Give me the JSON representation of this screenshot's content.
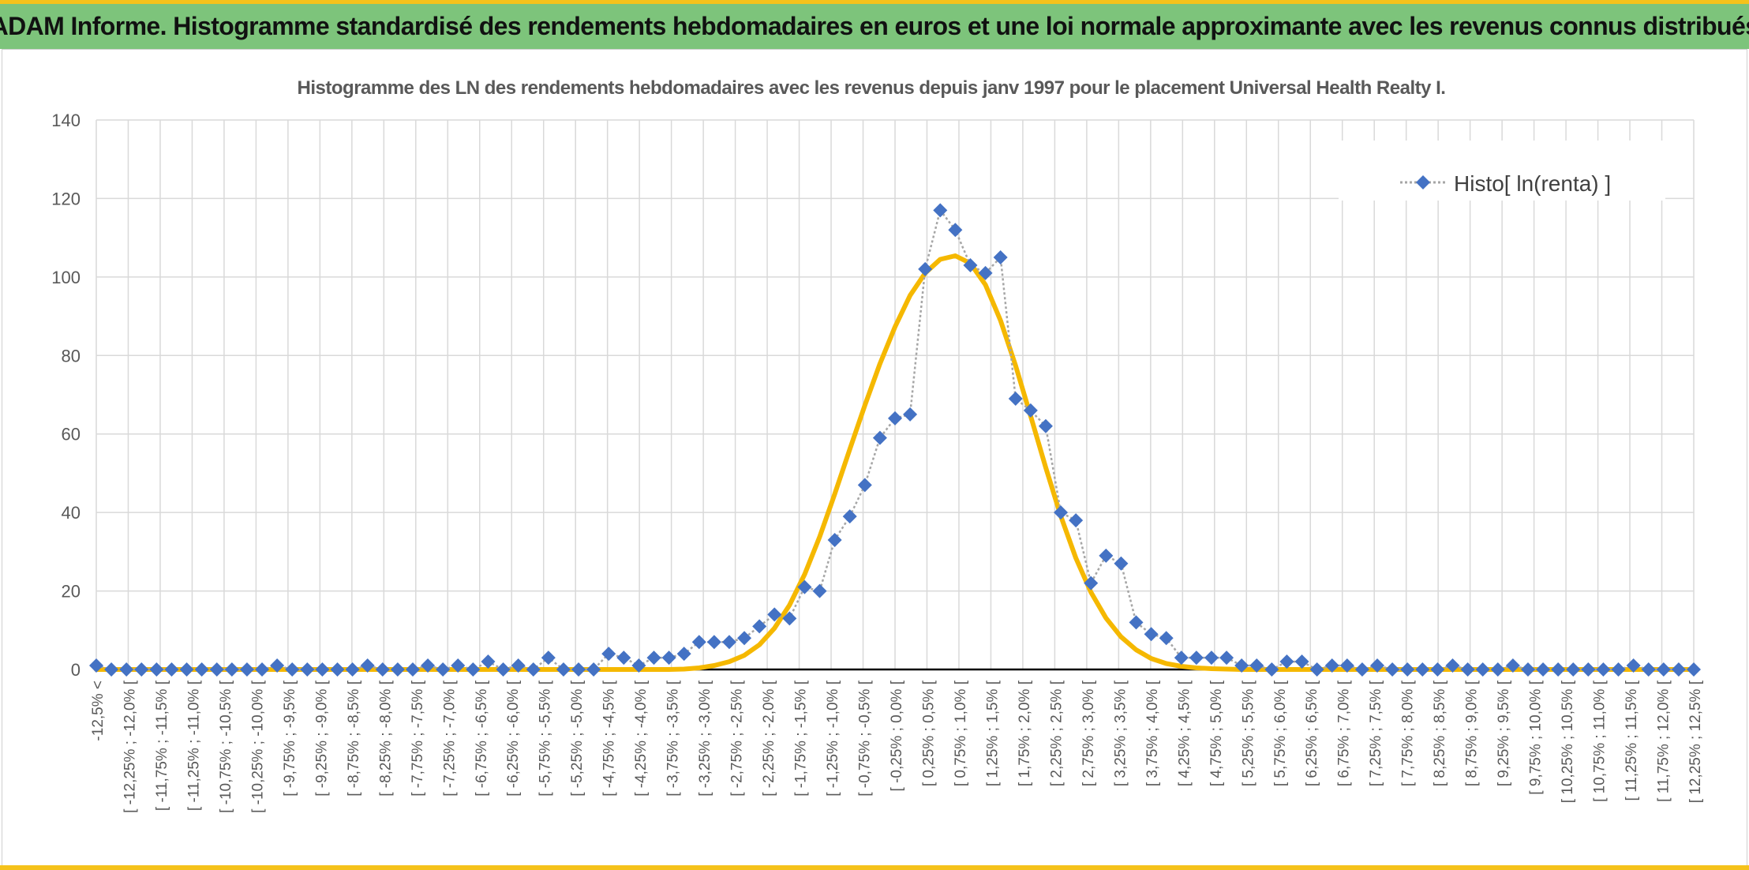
{
  "header": {
    "title": "ADAM Informe. Histogramme standardisé des rendements hebdomadaires en euros et une loi normale approximante avec les revenus connus distribués"
  },
  "colors": {
    "header_bg": "#7dc47b",
    "accent": "#f5c21b",
    "series_marker": "#4472c4",
    "series_line": "#a6a6a6",
    "normal_curve": "#f5b800"
  },
  "chart_data": {
    "type": "scatter",
    "title": "Histogramme des LN des rendements hebdomadaires avec les revenus depuis janv 1997 pour le placement Universal Health Realty I.",
    "xlabel": "",
    "ylabel": "",
    "ylim": [
      0,
      140
    ],
    "yticks": [
      "0",
      "20",
      "40",
      "60",
      "80",
      "100",
      "120",
      "140"
    ],
    "grid": true,
    "legend_position": "top-right",
    "categories": [
      "-12,5% <",
      "[ -12,25% ; -12,0% [",
      "[ -11,75% ; -11,5% [",
      "[ -11,25% ; -11,0% [",
      "[ -10,75% ; -10,5% [",
      "[ -10,25% ; -10,0% [",
      "[ -9,75% ; -9,5% [",
      "[ -9,25% ; -9,0% [",
      "[ -8,75% ; -8,5% [",
      "[ -8,25% ; -8,0% [",
      "[ -7,75% ; -7,5% [",
      "[ -7,25% ; -7,0% [",
      "[ -6,75% ; -6,5% [",
      "[ -6,25% ; -6,0% [",
      "[ -5,75% ; -5,5% [",
      "[ -5,25% ; -5,0% [",
      "[ -4,75% ; -4,5% [",
      "[ -4,25% ; -4,0% [",
      "[ -3,75% ; -3,5% [",
      "[ -3,25% ; -3,0% [",
      "[ -2,75% ; -2,5% [",
      "[ -2,25% ; -2,0% [",
      "[ -1,75% ; -1,5% [",
      "[ -1,25% ; -1,0% [",
      "[ -0,75% ; -0,5% [",
      "[ -0,25% ; 0,0% [",
      "[ 0,25% ; 0,5% [",
      "[ 0,75% ; 1,0% [",
      "[ 1,25% ; 1,5% [",
      "[ 1,75% ; 2,0% [",
      "[ 2,25% ; 2,5% [",
      "[ 2,75% ; 3,0% [",
      "[ 3,25% ; 3,5% [",
      "[ 3,75% ; 4,0% [",
      "[ 4,25% ; 4,5% [",
      "[ 4,75% ; 5,0% [",
      "[ 5,25% ; 5,5% [",
      "[ 5,75% ; 6,0% [",
      "[ 6,25% ; 6,5% [",
      "[ 6,75% ; 7,0% [",
      "[ 7,25% ; 7,5% [",
      "[ 7,75% ; 8,0% [",
      "[ 8,25% ; 8,5% [",
      "[ 8,75% ; 9,0% [",
      "[ 9,25% ; 9,5% [",
      "[ 9,75% ; 10,0% [",
      "[ 10,25% ; 10,5% [",
      "[ 10,75% ; 11,0% [",
      "[ 11,25% ; 11,5% [",
      "[ 11,75% ; 12,0% [",
      "[ 12,25% ; 12,5% ["
    ],
    "series": [
      {
        "name": "Histo[ ln(renta) ]",
        "style": "dotted line with diamond markers",
        "values": [
          1,
          0,
          0,
          0,
          0,
          0,
          0,
          0,
          0,
          0,
          0,
          0,
          1,
          0,
          0,
          0,
          0,
          0,
          1,
          0,
          0,
          0,
          1,
          0,
          1,
          0,
          2,
          0,
          1,
          0,
          3,
          0,
          0,
          0,
          4,
          3,
          1,
          3,
          3,
          4,
          7,
          7,
          7,
          8,
          11,
          14,
          13,
          21,
          20,
          33,
          39,
          47,
          59,
          64,
          65,
          102,
          117,
          112,
          103,
          101,
          105,
          69,
          66,
          62,
          40,
          38,
          22,
          29,
          27,
          12,
          9,
          8,
          3,
          3,
          3,
          3,
          1,
          1,
          0,
          2,
          2,
          0,
          1,
          1,
          0,
          1,
          0,
          0,
          0,
          0,
          1,
          0,
          0,
          0,
          1,
          0,
          0,
          0,
          0,
          0,
          0,
          0,
          1,
          0,
          0,
          0,
          0
        ]
      },
      {
        "name": "",
        "style": "smooth line",
        "values": [
          0,
          0,
          0,
          0,
          0,
          0,
          0,
          0,
          0,
          0,
          0,
          0,
          0,
          0,
          0,
          0,
          0,
          0,
          0,
          0,
          0,
          0,
          0,
          0,
          0,
          0,
          0,
          0,
          0,
          0,
          0,
          0,
          0,
          0,
          0,
          0,
          0,
          0,
          0,
          0.1,
          0.4,
          1,
          2,
          3.6,
          6.3,
          10.5,
          16.4,
          24.2,
          33.8,
          44.7,
          56.1,
          67.3,
          77.9,
          87.3,
          95.3,
          101,
          104.5,
          105.4,
          103.5,
          98,
          88.9,
          77.4,
          64.6,
          51.5,
          39.1,
          28.4,
          19.7,
          13.1,
          8.3,
          5,
          2.8,
          1.5,
          0.8,
          0.4,
          0.2,
          0.1,
          0,
          0,
          0,
          0,
          0,
          0,
          0,
          0,
          0,
          0,
          0,
          0,
          0,
          0,
          0,
          0,
          0,
          0,
          0,
          0,
          0,
          0,
          0,
          0,
          0,
          0,
          0,
          0,
          0,
          0,
          0
        ]
      }
    ]
  }
}
